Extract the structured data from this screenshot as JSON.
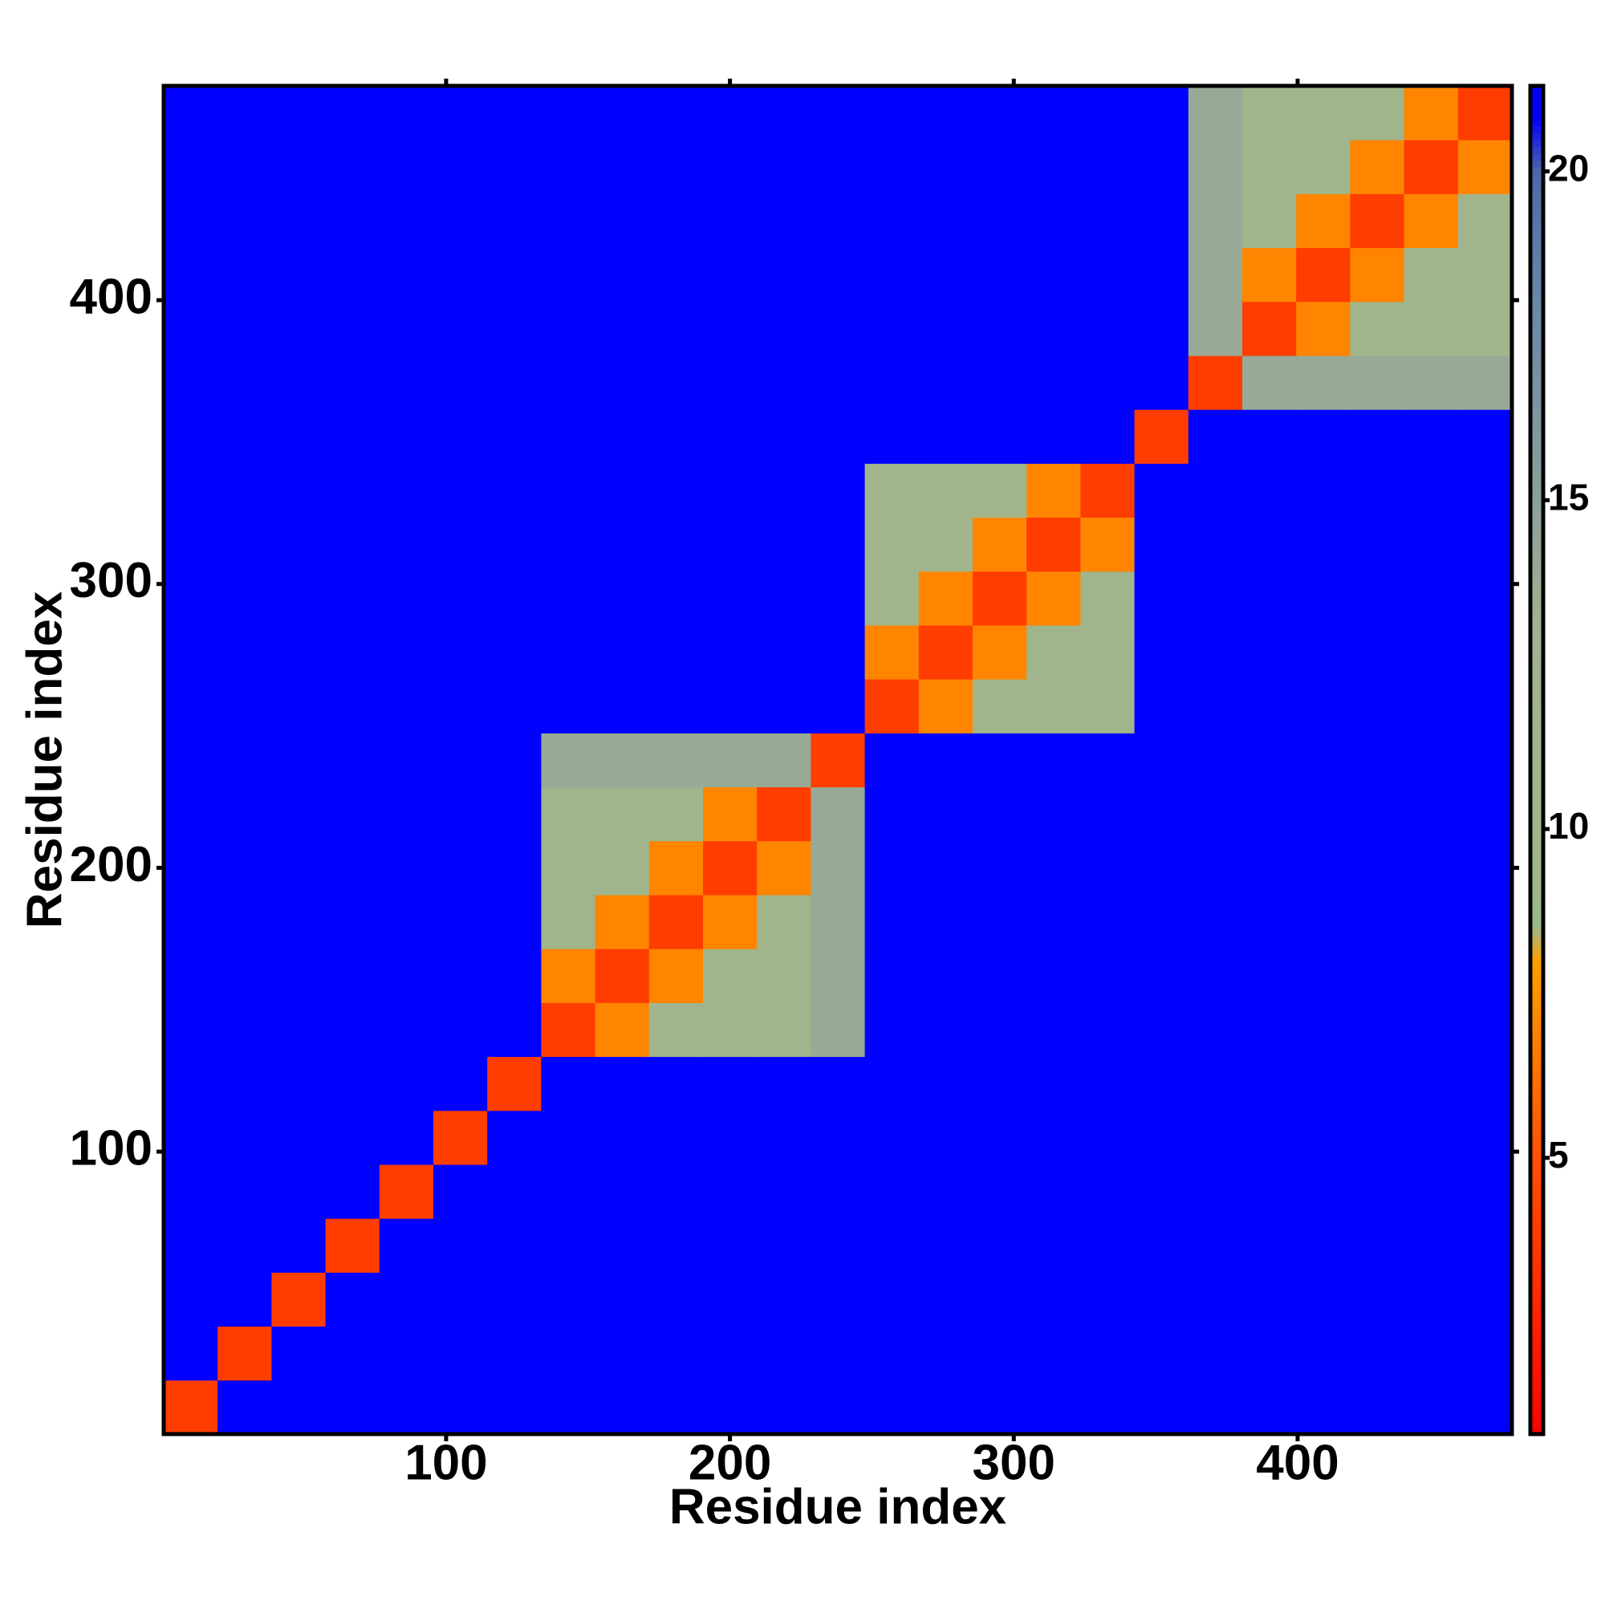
{
  "chart_data": {
    "type": "heatmap",
    "x_label": "Residue index",
    "y_label": "Residue index",
    "x": [
      10,
      29,
      48,
      67,
      86,
      105,
      124,
      143,
      162,
      181,
      200,
      219,
      238,
      257,
      276,
      295,
      314,
      333,
      352,
      371,
      390,
      409,
      428,
      447,
      466
    ],
    "y": [
      10,
      29,
      48,
      67,
      86,
      105,
      124,
      143,
      162,
      181,
      200,
      219,
      238,
      257,
      276,
      295,
      314,
      333,
      352,
      371,
      390,
      409,
      428,
      447,
      466
    ],
    "values": [
      [
        4,
        21,
        21,
        21,
        21,
        21,
        21,
        21,
        21,
        21,
        21,
        21,
        21,
        21,
        21,
        21,
        21,
        21,
        21,
        21,
        21,
        21,
        21,
        21,
        21
      ],
      [
        21,
        4,
        21,
        21,
        21,
        21,
        21,
        21,
        21,
        21,
        21,
        21,
        21,
        21,
        21,
        21,
        21,
        21,
        21,
        21,
        21,
        21,
        21,
        21,
        21
      ],
      [
        21,
        21,
        4,
        21,
        21,
        21,
        21,
        21,
        21,
        21,
        21,
        21,
        21,
        21,
        21,
        21,
        21,
        21,
        21,
        21,
        21,
        21,
        21,
        21,
        21
      ],
      [
        21,
        21,
        21,
        4,
        21,
        21,
        21,
        21,
        21,
        21,
        21,
        21,
        21,
        21,
        21,
        21,
        21,
        21,
        21,
        21,
        21,
        21,
        21,
        21,
        21
      ],
      [
        21,
        21,
        21,
        21,
        4,
        21,
        21,
        21,
        21,
        21,
        21,
        21,
        21,
        21,
        21,
        21,
        21,
        21,
        21,
        21,
        21,
        21,
        21,
        21,
        21
      ],
      [
        21,
        21,
        21,
        21,
        21,
        4,
        21,
        21,
        21,
        21,
        21,
        21,
        21,
        21,
        21,
        21,
        21,
        21,
        21,
        21,
        21,
        21,
        21,
        21,
        21
      ],
      [
        21,
        21,
        21,
        21,
        21,
        21,
        4,
        21,
        21,
        21,
        21,
        21,
        21,
        21,
        21,
        21,
        21,
        21,
        21,
        21,
        21,
        21,
        21,
        21,
        21
      ],
      [
        21,
        21,
        21,
        21,
        21,
        21,
        21,
        4,
        7,
        11,
        11,
        11,
        14,
        21,
        21,
        21,
        21,
        21,
        21,
        21,
        21,
        21,
        21,
        21,
        21
      ],
      [
        21,
        21,
        21,
        21,
        21,
        21,
        21,
        7,
        4,
        7,
        11,
        11,
        14,
        21,
        21,
        21,
        21,
        21,
        21,
        21,
        21,
        21,
        21,
        21,
        21
      ],
      [
        21,
        21,
        21,
        21,
        21,
        21,
        21,
        11,
        7,
        4,
        7,
        11,
        14,
        21,
        21,
        21,
        21,
        21,
        21,
        21,
        21,
        21,
        21,
        21,
        21
      ],
      [
        21,
        21,
        21,
        21,
        21,
        21,
        21,
        11,
        11,
        7,
        4,
        7,
        14,
        21,
        21,
        21,
        21,
        21,
        21,
        21,
        21,
        21,
        21,
        21,
        21
      ],
      [
        21,
        21,
        21,
        21,
        21,
        21,
        21,
        11,
        11,
        11,
        7,
        4,
        14,
        21,
        21,
        21,
        21,
        21,
        21,
        21,
        21,
        21,
        21,
        21,
        21
      ],
      [
        21,
        21,
        21,
        21,
        21,
        21,
        21,
        14,
        14,
        14,
        14,
        14,
        4,
        21,
        21,
        21,
        21,
        21,
        21,
        21,
        21,
        21,
        21,
        21,
        21
      ],
      [
        21,
        21,
        21,
        21,
        21,
        21,
        21,
        21,
        21,
        21,
        21,
        21,
        21,
        4,
        7,
        11,
        11,
        11,
        21,
        21,
        21,
        21,
        21,
        21,
        21
      ],
      [
        21,
        21,
        21,
        21,
        21,
        21,
        21,
        21,
        21,
        21,
        21,
        21,
        21,
        7,
        4,
        7,
        11,
        11,
        21,
        21,
        21,
        21,
        21,
        21,
        21
      ],
      [
        21,
        21,
        21,
        21,
        21,
        21,
        21,
        21,
        21,
        21,
        21,
        21,
        21,
        11,
        7,
        4,
        7,
        11,
        21,
        21,
        21,
        21,
        21,
        21,
        21
      ],
      [
        21,
        21,
        21,
        21,
        21,
        21,
        21,
        21,
        21,
        21,
        21,
        21,
        21,
        11,
        11,
        7,
        4,
        7,
        21,
        21,
        21,
        21,
        21,
        21,
        21
      ],
      [
        21,
        21,
        21,
        21,
        21,
        21,
        21,
        21,
        21,
        21,
        21,
        21,
        21,
        11,
        11,
        11,
        7,
        4,
        21,
        21,
        21,
        21,
        21,
        21,
        21
      ],
      [
        21,
        21,
        21,
        21,
        21,
        21,
        21,
        21,
        21,
        21,
        21,
        21,
        21,
        21,
        21,
        21,
        21,
        21,
        4,
        21,
        21,
        21,
        21,
        21,
        21
      ],
      [
        21,
        21,
        21,
        21,
        21,
        21,
        21,
        21,
        21,
        21,
        21,
        21,
        21,
        21,
        21,
        21,
        21,
        21,
        21,
        4,
        14,
        14,
        14,
        14,
        14
      ],
      [
        21,
        21,
        21,
        21,
        21,
        21,
        21,
        21,
        21,
        21,
        21,
        21,
        21,
        21,
        21,
        21,
        21,
        21,
        21,
        14,
        4,
        7,
        11,
        11,
        11
      ],
      [
        21,
        21,
        21,
        21,
        21,
        21,
        21,
        21,
        21,
        21,
        21,
        21,
        21,
        21,
        21,
        21,
        21,
        21,
        21,
        14,
        7,
        4,
        7,
        11,
        11
      ],
      [
        21,
        21,
        21,
        21,
        21,
        21,
        21,
        21,
        21,
        21,
        21,
        21,
        21,
        21,
        21,
        21,
        21,
        21,
        21,
        14,
        11,
        7,
        4,
        7,
        11
      ],
      [
        21,
        21,
        21,
        21,
        21,
        21,
        21,
        21,
        21,
        21,
        21,
        21,
        21,
        21,
        21,
        21,
        21,
        21,
        21,
        14,
        11,
        11,
        7,
        4,
        7
      ],
      [
        21,
        21,
        21,
        21,
        21,
        21,
        21,
        21,
        21,
        21,
        21,
        21,
        21,
        21,
        21,
        21,
        21,
        21,
        21,
        14,
        11,
        11,
        11,
        7,
        4
      ]
    ],
    "xlim": [
      0.5,
      475.5
    ],
    "ylim": [
      0.5,
      475.5
    ],
    "xticks": [
      100,
      200,
      300,
      400
    ],
    "yticks": [
      100,
      200,
      300,
      400
    ],
    "zlim": [
      0.8,
      21.3
    ],
    "zticks": [
      5,
      10,
      15,
      20
    ],
    "colorscale": [
      [
        0.8,
        "#ff0000"
      ],
      [
        5,
        "#ff5000"
      ],
      [
        8,
        "#ffa000"
      ],
      [
        8.5,
        "#9db888"
      ],
      [
        13,
        "#a3b290"
      ],
      [
        18,
        "#6a88a8"
      ],
      [
        20,
        "#4a6aa8"
      ],
      [
        20.8,
        "#0000ff"
      ],
      [
        21.3,
        "#0000ff"
      ]
    ]
  }
}
